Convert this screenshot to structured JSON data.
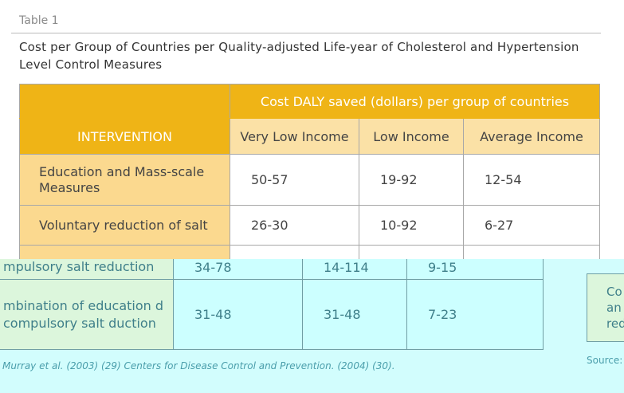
{
  "label": "Table 1",
  "title": "Cost per Group of Countries per Quality-adjusted Life-year of Cholesterol and Hypertension Level Control Measures",
  "table": {
    "group_header": "Cost DALY saved (dollars) per group of countries",
    "headers": [
      "INTERVENTION",
      "Very Low Income",
      "Low Income",
      "Average Income"
    ],
    "rows": [
      [
        "Education and Mass-scale Measures",
        "50-57",
        "19-92",
        "12-54"
      ],
      [
        "Voluntary reduction of salt",
        "26-30",
        "10-92",
        "6-27"
      ],
      [
        "Compulsory salt reduction",
        "34-78",
        "14-114",
        "9-15"
      ]
    ]
  },
  "overlay": {
    "rows": [
      [
        "mpulsory salt reduction",
        "34-78",
        "14-114",
        "9-15"
      ],
      [
        "mbination of education d compulsory salt duction",
        "31-48",
        "31-48",
        "7-23"
      ]
    ],
    "footnote": "Murray et al. (2003) (29) Centers for Disease Control and Prevention. (2004) (30).",
    "side_text": [
      "Co",
      "an",
      "red"
    ],
    "source": "Source:"
  }
}
